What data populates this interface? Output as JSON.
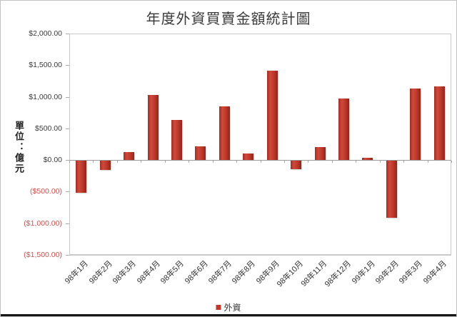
{
  "chart_data": {
    "type": "bar",
    "title": "年度外資買賣金額統計圖",
    "ylabel": "單位：億元",
    "xlabel": "",
    "series_name": "外資",
    "categories": [
      "98年1月",
      "98年2月",
      "98年3月",
      "98年4月",
      "98年5月",
      "98年6月",
      "98年7月",
      "98年8月",
      "98年9月",
      "98年10月",
      "98年11月",
      "98年12月",
      "99年1月",
      "99年2月",
      "99年3月",
      "99年4月"
    ],
    "values": [
      -520,
      -160,
      130,
      1030,
      630,
      215,
      845,
      100,
      1415,
      -140,
      210,
      970,
      35,
      -910,
      1130,
      1160
    ],
    "ylim": [
      -1500,
      2000
    ],
    "y_tick_step": 500,
    "y_ticks": [
      {
        "label": "$2,000.00",
        "value": 2000,
        "negative": false
      },
      {
        "label": "$1,500.00",
        "value": 1500,
        "negative": false
      },
      {
        "label": "$1,000.00",
        "value": 1000,
        "negative": false
      },
      {
        "label": "$500.00",
        "value": 500,
        "negative": false
      },
      {
        "label": "$0.00",
        "value": 0,
        "negative": false
      },
      {
        "label": "($500.00)",
        "value": -500,
        "negative": true
      },
      {
        "label": "($1,000.00)",
        "value": -1000,
        "negative": true
      },
      {
        "label": "($1,500.00)",
        "value": -1500,
        "negative": true
      }
    ],
    "grid": true,
    "legend_position": "bottom",
    "colors": {
      "bar_main": "#c0392b",
      "bar_gradient_left": "#a02d23",
      "bar_gradient_mid": "#cd4a3c",
      "bar_gradient_right": "#8e251c",
      "gridline": "#c9c9c9",
      "zero_axis": "#9a9a9a",
      "tick": "#aaaaaa",
      "positive_label": "#3a3a3a",
      "negative_label": "#c65551",
      "title_text": "#3a3a3a"
    }
  }
}
